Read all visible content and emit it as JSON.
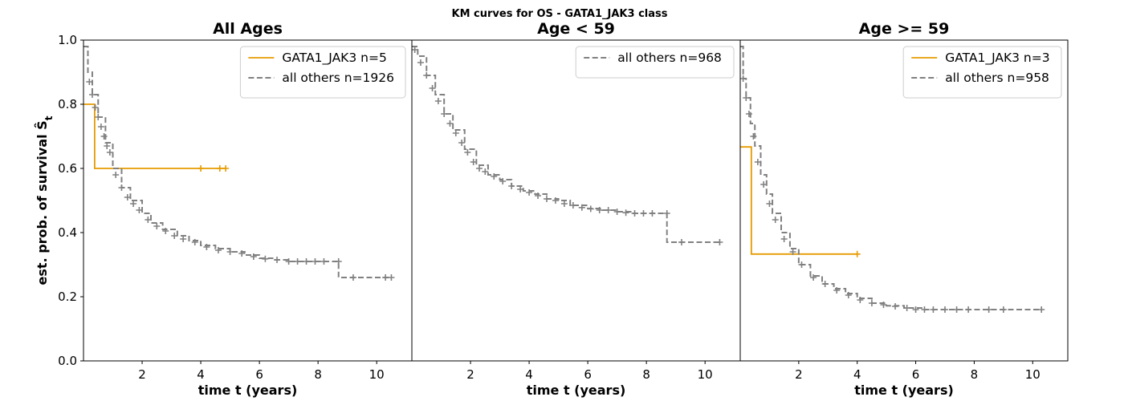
{
  "figure": {
    "suptitle": "KM curves for OS - GATA1_JAK3 class",
    "ylabel": "est. prob. of survival Ŝ",
    "ylabel_subscript": "t"
  },
  "colors": {
    "gata": "#e69b00",
    "others": "#808080"
  },
  "chart_data": [
    {
      "type": "line",
      "title": "All Ages",
      "xlabel": "time t (years)",
      "ylabel": "est. prob. of survival Ŝt",
      "xlim": [
        0,
        11.2
      ],
      "ylim": [
        0,
        1.0
      ],
      "xticks": [
        2,
        4,
        6,
        8,
        10
      ],
      "yticks": [
        0.0,
        0.2,
        0.4,
        0.6,
        0.8,
        1.0
      ],
      "ytick_labels": [
        "0.0",
        "0.2",
        "0.4",
        "0.6",
        "0.8",
        "1.0"
      ],
      "legend_position": "top-right",
      "series": [
        {
          "name": "GATA1_JAK3 n=5",
          "style": "solid",
          "color": "gata",
          "steps": [
            [
              0,
              0.8
            ],
            [
              0.38,
              0.8
            ],
            [
              0.38,
              0.6
            ],
            [
              4.85,
              0.6
            ]
          ],
          "censors": [
            [
              4.0,
              0.6
            ],
            [
              4.65,
              0.6
            ],
            [
              4.85,
              0.6
            ]
          ]
        },
        {
          "name": "all others n=1926",
          "style": "dashed",
          "color": "others",
          "steps": [
            [
              0,
              0.98
            ],
            [
              0.15,
              0.9
            ],
            [
              0.3,
              0.83
            ],
            [
              0.5,
              0.76
            ],
            [
              0.75,
              0.68
            ],
            [
              1.0,
              0.6
            ],
            [
              1.3,
              0.54
            ],
            [
              1.6,
              0.5
            ],
            [
              2.0,
              0.46
            ],
            [
              2.3,
              0.43
            ],
            [
              2.7,
              0.41
            ],
            [
              3.2,
              0.39
            ],
            [
              3.6,
              0.375
            ],
            [
              4.0,
              0.36
            ],
            [
              4.5,
              0.35
            ],
            [
              5.0,
              0.34
            ],
            [
              5.5,
              0.33
            ],
            [
              6.0,
              0.32
            ],
            [
              6.5,
              0.315
            ],
            [
              7.0,
              0.31
            ],
            [
              7.6,
              0.31
            ],
            [
              8.3,
              0.31
            ],
            [
              8.7,
              0.31
            ],
            [
              8.7,
              0.26
            ],
            [
              9.5,
              0.26
            ],
            [
              10.5,
              0.26
            ]
          ],
          "censors": [
            [
              0.2,
              0.87
            ],
            [
              0.3,
              0.83
            ],
            [
              0.4,
              0.79
            ],
            [
              0.5,
              0.76
            ],
            [
              0.6,
              0.73
            ],
            [
              0.7,
              0.7
            ],
            [
              0.8,
              0.67
            ],
            [
              0.9,
              0.65
            ],
            [
              1.1,
              0.58
            ],
            [
              1.3,
              0.54
            ],
            [
              1.5,
              0.51
            ],
            [
              1.7,
              0.49
            ],
            [
              1.9,
              0.47
            ],
            [
              2.2,
              0.44
            ],
            [
              2.5,
              0.42
            ],
            [
              2.8,
              0.405
            ],
            [
              3.1,
              0.39
            ],
            [
              3.4,
              0.38
            ],
            [
              3.8,
              0.37
            ],
            [
              4.2,
              0.355
            ],
            [
              4.6,
              0.345
            ],
            [
              5.0,
              0.34
            ],
            [
              5.4,
              0.335
            ],
            [
              5.8,
              0.325
            ],
            [
              6.2,
              0.318
            ],
            [
              6.6,
              0.315
            ],
            [
              7.0,
              0.31
            ],
            [
              7.3,
              0.31
            ],
            [
              7.6,
              0.31
            ],
            [
              7.9,
              0.31
            ],
            [
              8.2,
              0.31
            ],
            [
              8.7,
              0.31
            ],
            [
              9.2,
              0.26
            ],
            [
              10.3,
              0.26
            ],
            [
              10.5,
              0.26
            ]
          ]
        }
      ]
    },
    {
      "type": "line",
      "title": "Age < 59",
      "xlabel": "time t (years)",
      "xlim": [
        0,
        11.2
      ],
      "ylim": [
        0,
        1.0
      ],
      "xticks": [
        2,
        4,
        6,
        8,
        10
      ],
      "legend_position": "top-right",
      "series": [
        {
          "name": "all others n=968",
          "style": "dashed",
          "color": "others",
          "steps": [
            [
              0,
              0.98
            ],
            [
              0.2,
              0.95
            ],
            [
              0.5,
              0.89
            ],
            [
              0.8,
              0.83
            ],
            [
              1.1,
              0.77
            ],
            [
              1.4,
              0.72
            ],
            [
              1.8,
              0.66
            ],
            [
              2.2,
              0.61
            ],
            [
              2.6,
              0.58
            ],
            [
              3.0,
              0.565
            ],
            [
              3.4,
              0.545
            ],
            [
              3.8,
              0.53
            ],
            [
              4.2,
              0.52
            ],
            [
              4.6,
              0.505
            ],
            [
              5.0,
              0.5
            ],
            [
              5.4,
              0.485
            ],
            [
              6.0,
              0.475
            ],
            [
              6.5,
              0.47
            ],
            [
              7.0,
              0.465
            ],
            [
              7.5,
              0.46
            ],
            [
              8.7,
              0.46
            ],
            [
              8.7,
              0.37
            ],
            [
              9.5,
              0.37
            ],
            [
              10.5,
              0.37
            ]
          ],
          "censors": [
            [
              0.1,
              0.97
            ],
            [
              0.3,
              0.93
            ],
            [
              0.5,
              0.89
            ],
            [
              0.7,
              0.85
            ],
            [
              0.9,
              0.81
            ],
            [
              1.1,
              0.77
            ],
            [
              1.3,
              0.74
            ],
            [
              1.5,
              0.71
            ],
            [
              1.7,
              0.68
            ],
            [
              1.9,
              0.65
            ],
            [
              2.1,
              0.62
            ],
            [
              2.3,
              0.6
            ],
            [
              2.5,
              0.59
            ],
            [
              2.8,
              0.575
            ],
            [
              3.1,
              0.56
            ],
            [
              3.4,
              0.545
            ],
            [
              3.7,
              0.535
            ],
            [
              4.0,
              0.525
            ],
            [
              4.3,
              0.515
            ],
            [
              4.6,
              0.505
            ],
            [
              4.9,
              0.5
            ],
            [
              5.2,
              0.49
            ],
            [
              5.5,
              0.485
            ],
            [
              5.8,
              0.478
            ],
            [
              6.1,
              0.474
            ],
            [
              6.4,
              0.47
            ],
            [
              6.7,
              0.47
            ],
            [
              7.0,
              0.465
            ],
            [
              7.3,
              0.462
            ],
            [
              7.6,
              0.46
            ],
            [
              7.9,
              0.46
            ],
            [
              8.2,
              0.46
            ],
            [
              8.7,
              0.46
            ],
            [
              9.2,
              0.37
            ],
            [
              10.5,
              0.37
            ]
          ]
        }
      ]
    },
    {
      "type": "line",
      "title": "Age >= 59",
      "xlabel": "time t (years)",
      "xlim": [
        0,
        11.2
      ],
      "ylim": [
        0,
        1.0
      ],
      "xticks": [
        2,
        4,
        6,
        8,
        10
      ],
      "legend_position": "top-right",
      "series": [
        {
          "name": "GATA1_JAK3 n=3",
          "style": "solid",
          "color": "gata",
          "steps": [
            [
              0,
              0.667
            ],
            [
              0.38,
              0.667
            ],
            [
              0.38,
              0.333
            ],
            [
              4.0,
              0.333
            ]
          ],
          "censors": [
            [
              4.0,
              0.333
            ]
          ]
        },
        {
          "name": "all others n=958",
          "style": "dashed",
          "color": "others",
          "steps": [
            [
              0,
              0.98
            ],
            [
              0.1,
              0.88
            ],
            [
              0.2,
              0.82
            ],
            [
              0.35,
              0.74
            ],
            [
              0.5,
              0.67
            ],
            [
              0.7,
              0.58
            ],
            [
              0.9,
              0.52
            ],
            [
              1.1,
              0.46
            ],
            [
              1.4,
              0.4
            ],
            [
              1.7,
              0.35
            ],
            [
              2.0,
              0.3
            ],
            [
              2.4,
              0.265
            ],
            [
              2.8,
              0.24
            ],
            [
              3.2,
              0.225
            ],
            [
              3.6,
              0.21
            ],
            [
              4.0,
              0.195
            ],
            [
              4.5,
              0.18
            ],
            [
              5.0,
              0.172
            ],
            [
              5.6,
              0.165
            ],
            [
              6.2,
              0.16
            ],
            [
              7.0,
              0.16
            ],
            [
              8.0,
              0.16
            ],
            [
              9.0,
              0.16
            ],
            [
              10.3,
              0.16
            ]
          ],
          "censors": [
            [
              0.1,
              0.88
            ],
            [
              0.2,
              0.82
            ],
            [
              0.3,
              0.77
            ],
            [
              0.45,
              0.7
            ],
            [
              0.6,
              0.62
            ],
            [
              0.8,
              0.55
            ],
            [
              1.0,
              0.49
            ],
            [
              1.2,
              0.44
            ],
            [
              1.5,
              0.38
            ],
            [
              1.8,
              0.34
            ],
            [
              2.1,
              0.3
            ],
            [
              2.5,
              0.26
            ],
            [
              2.9,
              0.24
            ],
            [
              3.3,
              0.22
            ],
            [
              3.7,
              0.205
            ],
            [
              4.1,
              0.19
            ],
            [
              4.5,
              0.18
            ],
            [
              4.9,
              0.175
            ],
            [
              5.3,
              0.17
            ],
            [
              5.7,
              0.165
            ],
            [
              6.0,
              0.16
            ],
            [
              6.3,
              0.16
            ],
            [
              6.6,
              0.16
            ],
            [
              7.0,
              0.16
            ],
            [
              7.4,
              0.16
            ],
            [
              7.8,
              0.16
            ],
            [
              8.5,
              0.16
            ],
            [
              9.0,
              0.16
            ],
            [
              10.3,
              0.16
            ]
          ]
        }
      ]
    }
  ]
}
